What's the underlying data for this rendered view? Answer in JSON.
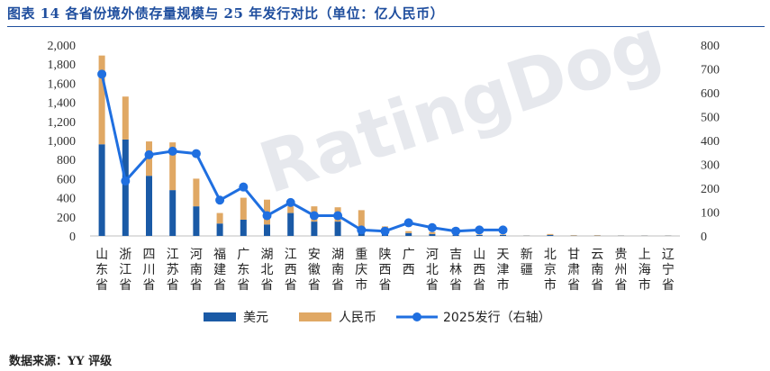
{
  "title": "图表 14 各省份境外债存量规模与 25 年发行对比（单位：亿人民币）",
  "source": "数据来源：YY 评级",
  "watermark": "RatingDog",
  "chart_data": {
    "type": "bar",
    "stacked": true,
    "categories": [
      "山东省",
      "浙江省",
      "四川省",
      "江苏省",
      "河南省",
      "福建省",
      "广东省",
      "湖北省",
      "江西省",
      "安徽省",
      "湖南省",
      "重庆市",
      "陕西省",
      "广西",
      "河北省",
      "吉林省",
      "山西省",
      "天津市",
      "新疆",
      "北京市",
      "甘肃省",
      "云南省",
      "贵州省",
      "上海市",
      "辽宁省"
    ],
    "series": [
      {
        "name": "美元",
        "axis": "left",
        "color": "#1a5aa6",
        "values": [
          960,
          1010,
          630,
          480,
          310,
          130,
          170,
          120,
          240,
          150,
          150,
          80,
          60,
          30,
          20,
          10,
          10,
          10,
          3,
          10,
          3,
          3,
          3,
          3,
          3
        ]
      },
      {
        "name": "人民币",
        "axis": "left",
        "color": "#e0a864",
        "values": [
          930,
          450,
          360,
          500,
          290,
          110,
          230,
          260,
          70,
          160,
          150,
          190,
          40,
          20,
          20,
          5,
          5,
          5,
          2,
          10,
          5,
          5,
          2,
          2,
          2
        ]
      },
      {
        "name": "2025发行（右轴）",
        "axis": "right",
        "type": "line",
        "color": "#1f6fe0",
        "values": [
          678,
          230,
          340,
          355,
          345,
          150,
          205,
          85,
          140,
          85,
          85,
          25,
          20,
          55,
          35,
          20,
          25,
          25,
          null,
          null,
          null,
          null,
          null,
          null,
          null
        ]
      }
    ],
    "ylim_left": [
      0,
      2000
    ],
    "yticks_left": [
      "0",
      "200",
      "400",
      "600",
      "800",
      "1,000",
      "1,200",
      "1,400",
      "1,600",
      "1,800",
      "2,000"
    ],
    "ylim_right": [
      0,
      800
    ],
    "yticks_right": [
      "0",
      "100",
      "200",
      "300",
      "400",
      "500",
      "600",
      "700",
      "800"
    ],
    "legend": "bottom",
    "grid": false
  }
}
